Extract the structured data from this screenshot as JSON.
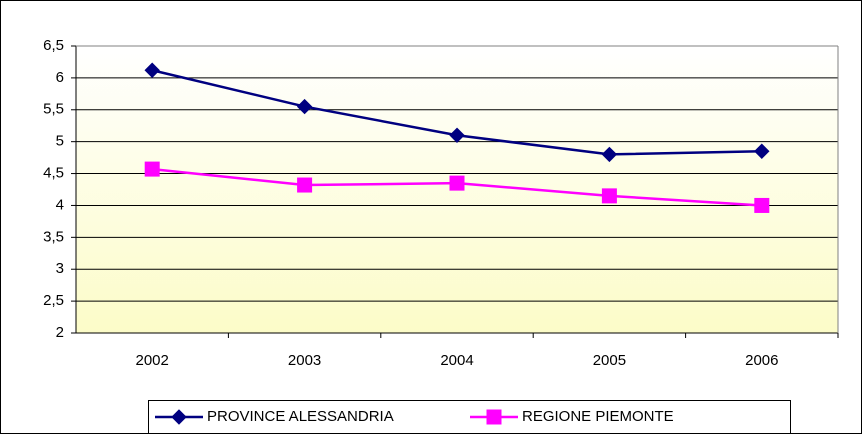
{
  "chart_data": {
    "type": "line",
    "categories": [
      "2002",
      "2003",
      "2004",
      "2005",
      "2006"
    ],
    "series": [
      {
        "name": "PROVINCE ALESSANDRIA",
        "color": "#000080",
        "marker": "diamond",
        "values": [
          6.12,
          5.55,
          5.1,
          4.8,
          4.85
        ]
      },
      {
        "name": "REGIONE PIEMONTE",
        "color": "#ff00ff",
        "marker": "square",
        "values": [
          4.57,
          4.32,
          4.35,
          4.15,
          4.0
        ]
      }
    ],
    "ylim": [
      2,
      6.5
    ],
    "yticks": [
      2,
      {
        "value": 2.5,
        "label": "2,5"
      },
      3,
      {
        "value": 3.5,
        "label": "3,5"
      },
      4,
      {
        "value": 4.5,
        "label": "4,5"
      },
      5,
      {
        "value": 5.5,
        "label": "5,5"
      },
      6,
      {
        "value": 6.5,
        "label": "6,5"
      }
    ],
    "grid": true,
    "legend": "bottom"
  }
}
